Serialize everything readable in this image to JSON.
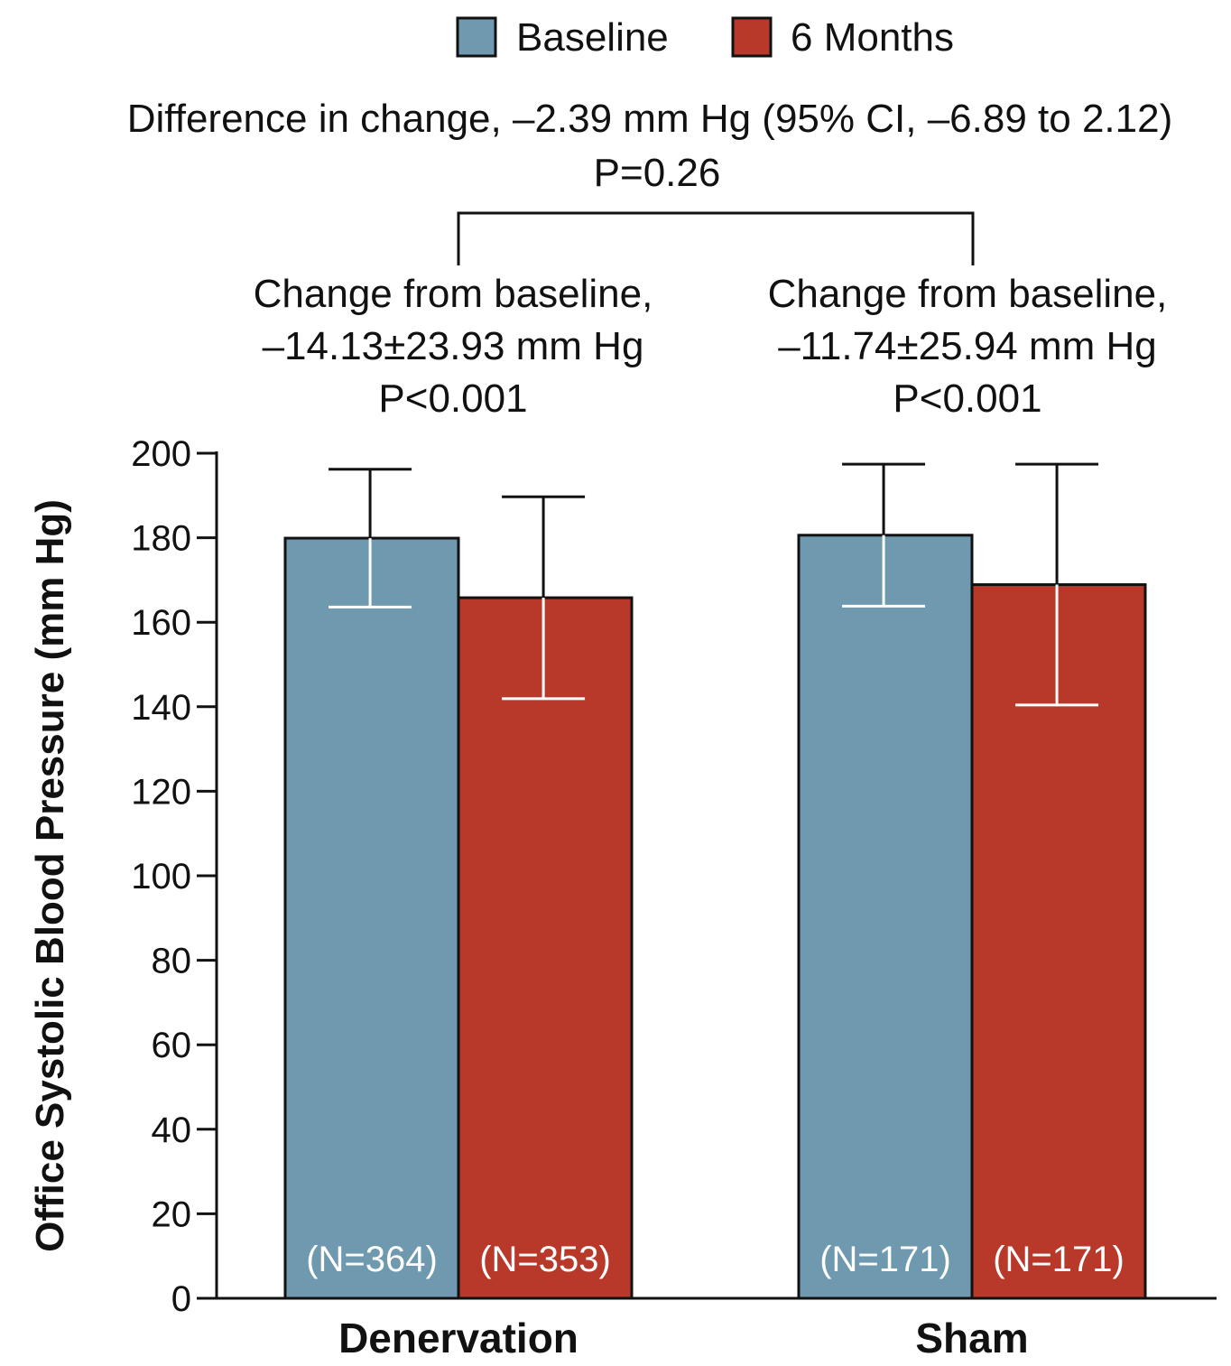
{
  "chart_data": {
    "type": "bar",
    "title": "",
    "xlabel": "",
    "ylabel": "Office Systolic Blood Pressure (mm Hg)",
    "ylim": [
      0,
      200
    ],
    "yticks": [
      0,
      20,
      40,
      60,
      80,
      100,
      120,
      140,
      160,
      180,
      200
    ],
    "grid": false,
    "legend_position": "top",
    "categories": [
      "Denervation",
      "Sham"
    ],
    "series": [
      {
        "name": "Baseline",
        "color": "#6f99ae",
        "values": [
          179.9,
          180.6
        ],
        "error": [
          16.3,
          16.8
        ],
        "n_labels": [
          "(N=364)",
          "(N=171)"
        ]
      },
      {
        "name": "6 Months",
        "color": "#b8392a",
        "values": [
          165.8,
          168.9
        ],
        "error": [
          23.9,
          28.5
        ],
        "n_labels": [
          "(N=353)",
          "(N=171)"
        ]
      }
    ],
    "annotations": {
      "difference_line1": "Difference in change, –2.39  mm Hg (95% CI, –6.89 to 2.12)",
      "difference_line2": "P=0.26",
      "groups": [
        {
          "line1": "Change from baseline,",
          "line2": "–14.13±23.93 mm Hg",
          "line3": "P<0.001"
        },
        {
          "line1": "Change from baseline,",
          "line2": "–11.74±25.94 mm Hg",
          "line3": "P<0.001"
        }
      ]
    }
  }
}
